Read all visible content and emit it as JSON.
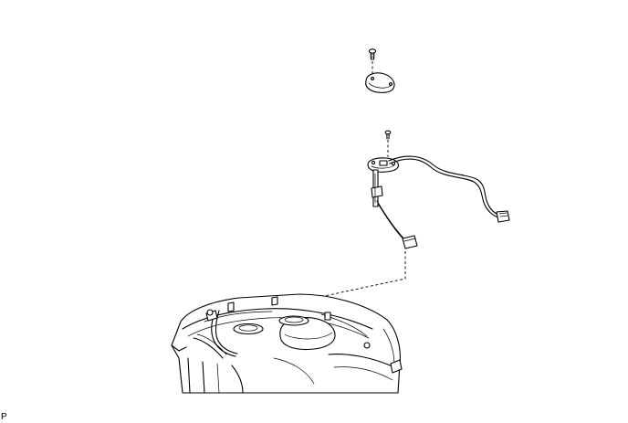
{
  "figure": {
    "corner_label": "P",
    "colors": {
      "line": "#000000",
      "background": "#ffffff"
    }
  }
}
